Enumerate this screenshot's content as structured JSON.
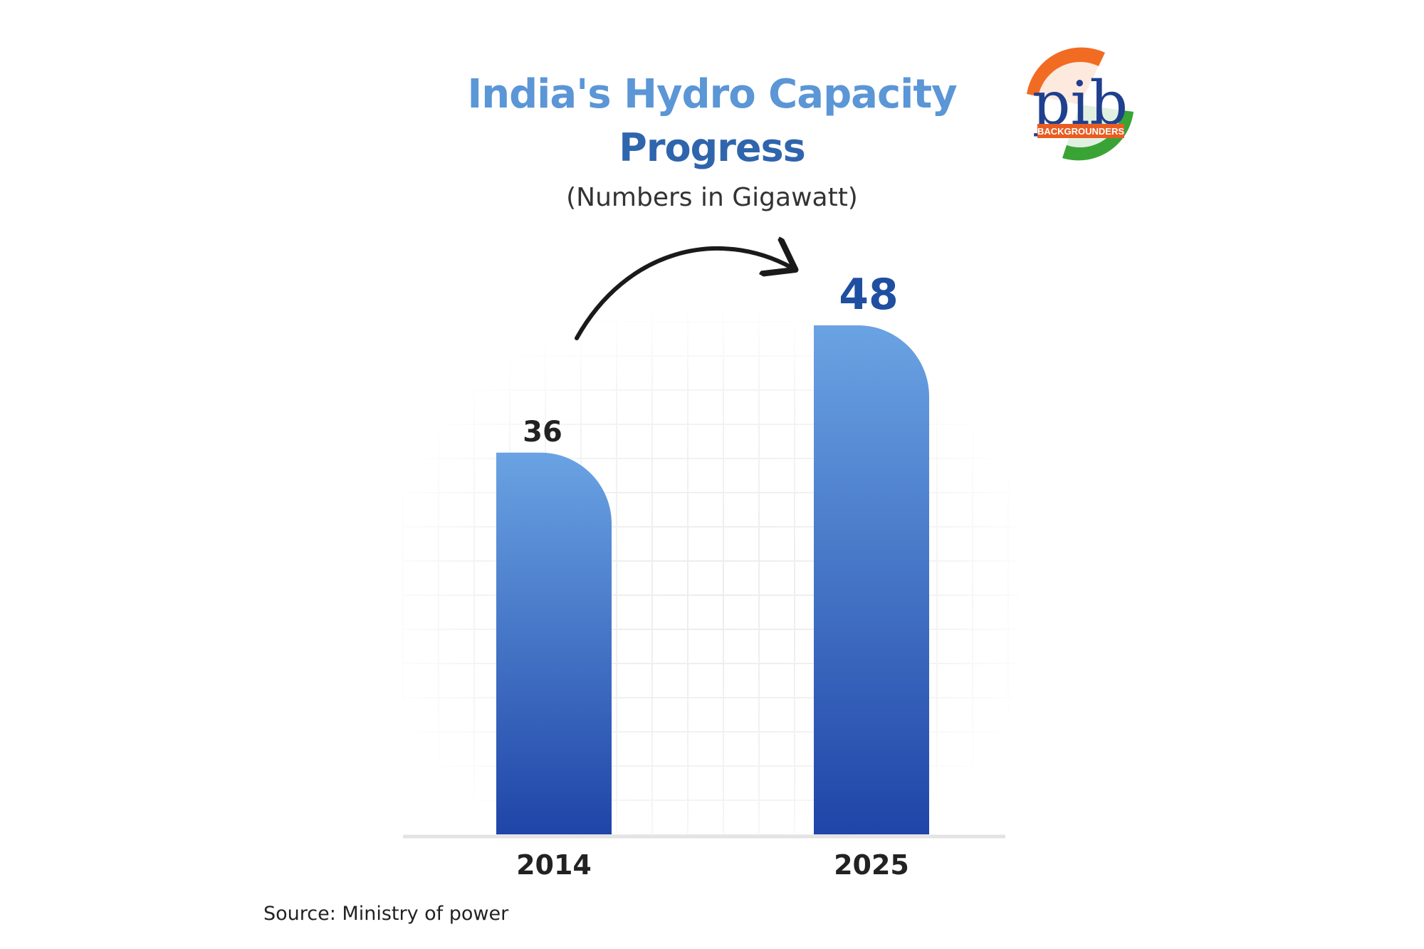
{
  "header": {
    "title_line1": "India's Hydro Capacity",
    "title_line2": "Progress",
    "subtitle": "(Numbers in Gigawatt)"
  },
  "logo": {
    "text": "pib",
    "tagline": "BACKGROUNDERS",
    "colors": [
      "#f26b22",
      "#ffffff",
      "#3aa335",
      "#1f3f8f"
    ]
  },
  "chart_data": {
    "type": "bar",
    "categories": [
      "2014",
      "2025"
    ],
    "values": [
      36,
      48
    ],
    "data_labels": [
      "36",
      "48"
    ],
    "ylim": [
      0,
      48
    ],
    "grid": true,
    "annotation": "arrow-from-2014-to-2025",
    "colors": {
      "bar_top": "#6aa3e3",
      "bar_bottom": "#1f45a8",
      "label_2025": "#1f4fa0"
    }
  },
  "footer": {
    "source": "Source: Ministry of power"
  }
}
